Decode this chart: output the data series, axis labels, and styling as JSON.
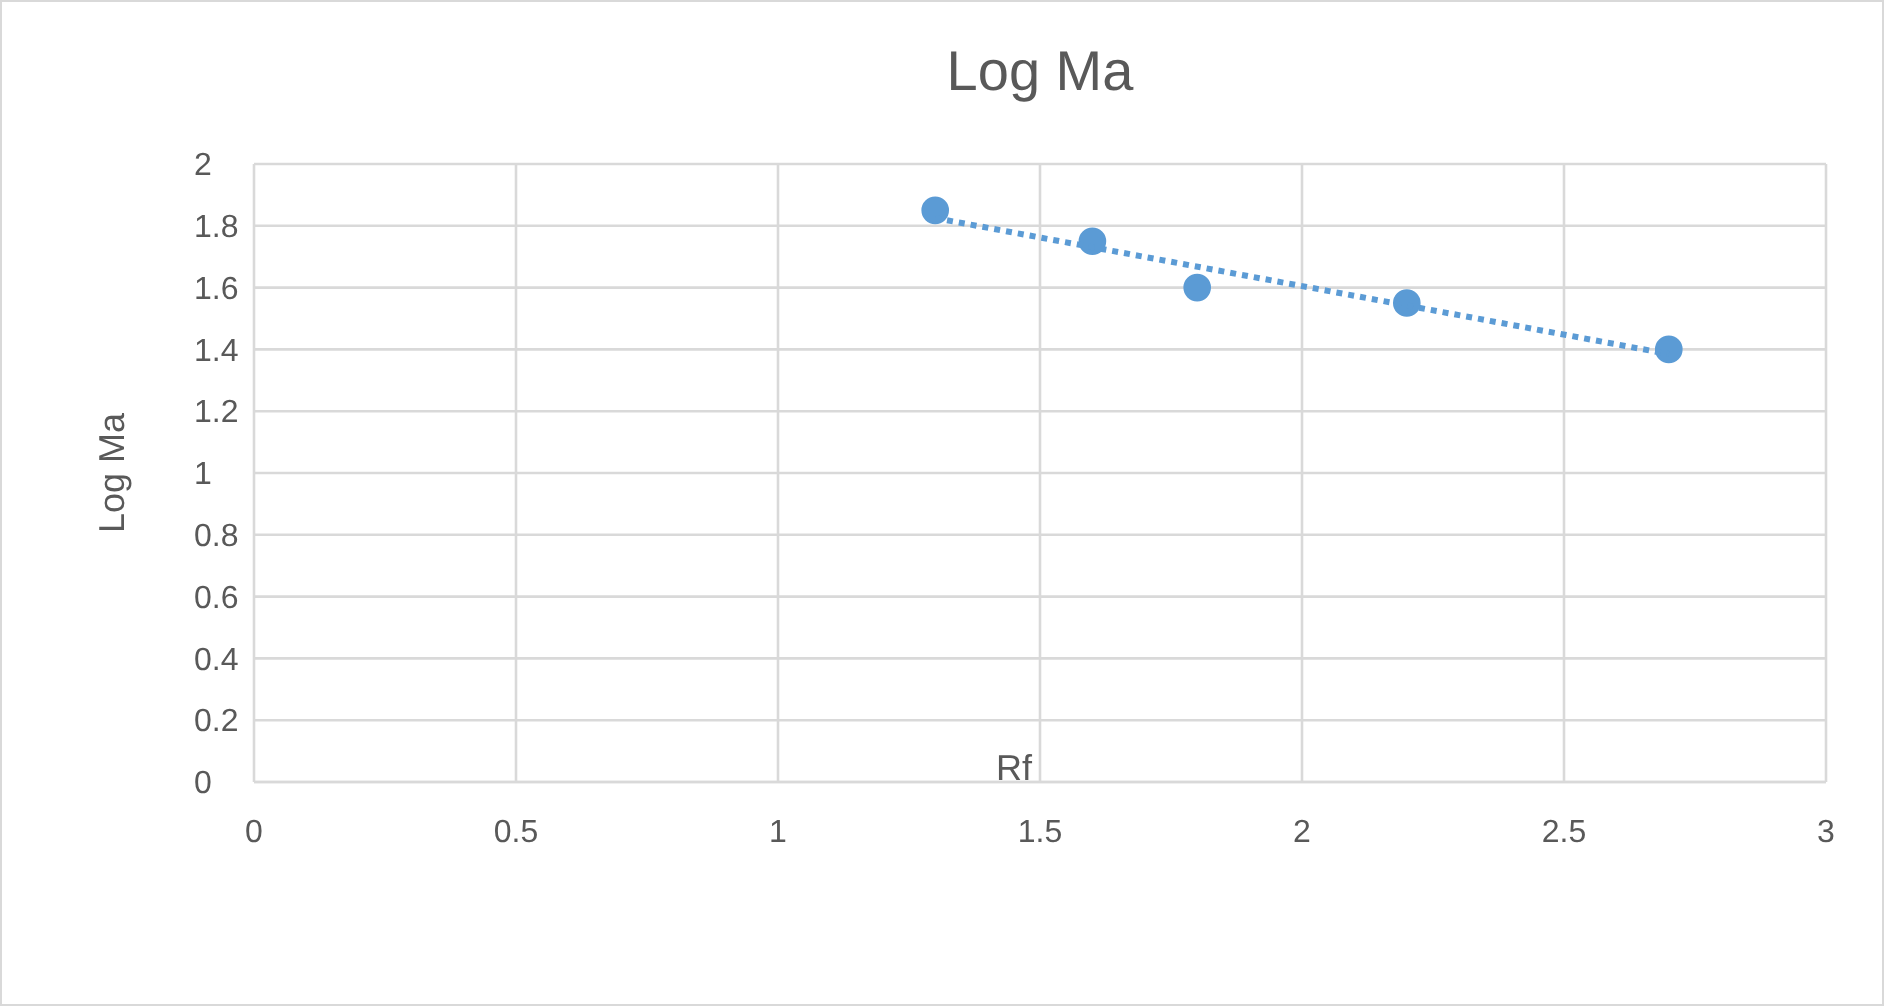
{
  "chart_data": {
    "type": "scatter",
    "title": "Log Ma",
    "xlabel": "Rf",
    "ylabel": "Log Ma",
    "xlim": [
      0,
      3
    ],
    "xticks": [
      0,
      0.5,
      1,
      1.5,
      2,
      2.5,
      3
    ],
    "ylim": [
      0,
      2
    ],
    "yticks": [
      0,
      0.2,
      0.4,
      0.6,
      0.8,
      1,
      1.2,
      1.4,
      1.6,
      1.8,
      2
    ],
    "grid": true,
    "series": [
      {
        "color": "#5b9bd5",
        "marker": "circle",
        "x": [
          1.3,
          1.6,
          1.8,
          2.2,
          2.7
        ],
        "values": [
          1.85,
          1.75,
          1.6,
          1.55,
          1.4
        ]
      },
      {
        "type": "line",
        "color": "#5b9bd5",
        "line_style": "dotted",
        "marker": "none",
        "x": [
          1.3,
          2.7
        ],
        "values": [
          1.825,
          1.385
        ]
      }
    ]
  }
}
